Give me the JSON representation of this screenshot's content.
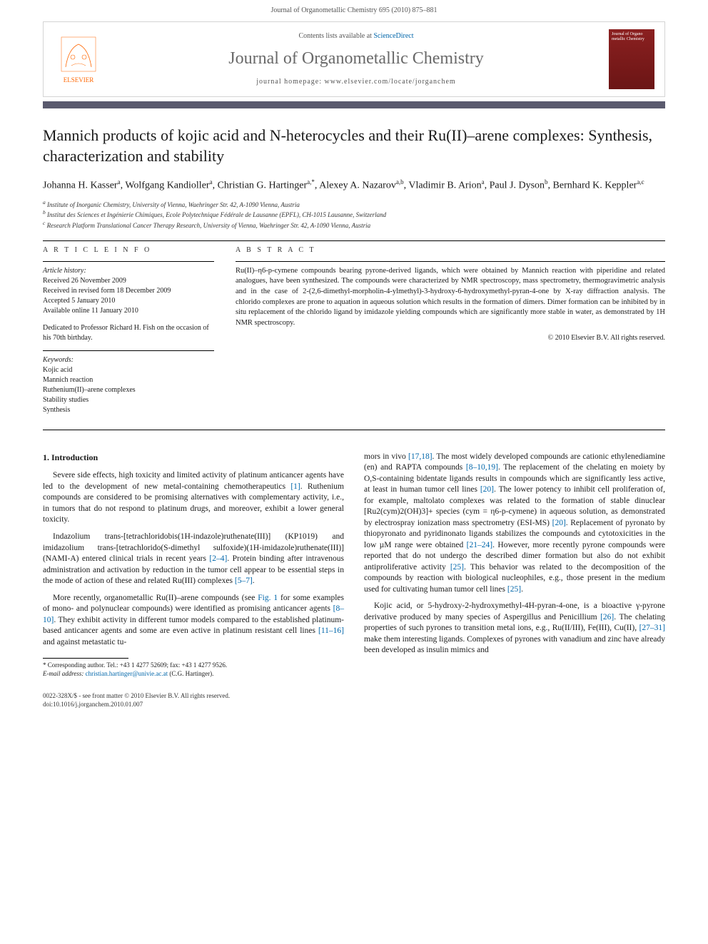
{
  "page_header": "Journal of Organometallic Chemistry 695 (2010) 875–881",
  "banner": {
    "contents_prefix": "Contents lists available at ",
    "contents_link": "ScienceDirect",
    "journal_name": "Journal of Organometallic Chemistry",
    "homepage_prefix": "journal homepage: ",
    "homepage_url": "www.elsevier.com/locate/jorganchem",
    "publisher_logo_text": "ELSEVIER",
    "cover_text": "Journal of Organo metallic Chemistry"
  },
  "color_bar": "#5a5a6e",
  "title": "Mannich products of kojic acid and N-heterocycles and their Ru(II)–arene complexes: Synthesis, characterization and stability",
  "authors_html": "Johanna H. Kasser<sup>a</sup>, Wolfgang Kandioller<sup>a</sup>, Christian G. Hartinger<sup>a,*</sup>, Alexey A. Nazarov<sup>a,b</sup>, Vladimir B. Arion<sup>a</sup>, Paul J. Dyson<sup>b</sup>, Bernhard K. Keppler<sup>a,c</sup>",
  "affiliations": [
    "a Institute of Inorganic Chemistry, University of Vienna, Waehringer Str. 42, A-1090 Vienna, Austria",
    "b Institut des Sciences et Ingénierie Chimiques, Ecole Polytechnique Fédérale de Lausanne (EPFL), CH-1015 Lausanne, Switzerland",
    "c Research Platform Translational Cancer Therapy Research, University of Vienna, Waehringer Str. 42, A-1090 Vienna, Austria"
  ],
  "info": {
    "heading": "A R T I C L E   I N F O",
    "history_label": "Article history:",
    "history": [
      "Received 26 November 2009",
      "Received in revised form 18 December 2009",
      "Accepted 5 January 2010",
      "Available online 11 January 2010"
    ],
    "dedication": "Dedicated to Professor Richard H. Fish on the occasion of his 70th birthday.",
    "keywords_label": "Keywords:",
    "keywords": [
      "Kojic acid",
      "Mannich reaction",
      "Ruthenium(II)–arene complexes",
      "Stability studies",
      "Synthesis"
    ]
  },
  "abstract": {
    "heading": "A B S T R A C T",
    "text": "Ru(II)–η6-p-cymene compounds bearing pyrone-derived ligands, which were obtained by Mannich reaction with piperidine and related analogues, have been synthesized. The compounds were characterized by NMR spectroscopy, mass spectrometry, thermogravimetric analysis and in the case of 2-(2,6-dimethyl-morpholin-4-ylmethyl)-3-hydroxy-6-hydroxymethyl-pyran-4-one by X-ray diffraction analysis. The chlorido complexes are prone to aquation in aqueous solution which results in the formation of dimers. Dimer formation can be inhibited by in situ replacement of the chlorido ligand by imidazole yielding compounds which are significantly more stable in water, as demonstrated by 1H NMR spectroscopy.",
    "copyright": "© 2010 Elsevier B.V. All rights reserved."
  },
  "section_heading": "1. Introduction",
  "paras_left": [
    "Severe side effects, high toxicity and limited activity of platinum anticancer agents have led to the development of new metal-containing chemotherapeutics [1]. Ruthenium compounds are considered to be promising alternatives with complementary activity, i.e., in tumors that do not respond to platinum drugs, and moreover, exhibit a lower general toxicity.",
    "Indazolium trans-[tetrachloridobis(1H-indazole)ruthenate(III)] (KP1019) and imidazolium trans-[tetrachlorido(S-dimethyl sulfoxide)(1H-imidazole)ruthenate(III)] (NAMI-A) entered clinical trials in recent years [2–4]. Protein binding after intravenous administration and activation by reduction in the tumor cell appear to be essential steps in the mode of action of these and related Ru(III) complexes [5–7].",
    "More recently, organometallic Ru(II)–arene compounds (see Fig. 1 for some examples of mono- and polynuclear compounds) were identified as promising anticancer agents [8–10]. They exhibit activity in different tumor models compared to the established platinum-based anticancer agents and some are even active in platinum resistant cell lines [11–16] and against metastatic tu-"
  ],
  "paras_right": [
    "mors in vivo [17,18]. The most widely developed compounds are cationic ethylenediamine (en) and RAPTA compounds [8–10,19]. The replacement of the chelating en moiety by O,S-containing bidentate ligands results in compounds which are significantly less active, at least in human tumor cell lines [20]. The lower potency to inhibit cell proliferation of, for example, maltolato complexes was related to the formation of stable dinuclear [Ru2(cym)2(OH)3]+ species (cym = η6-p-cymene) in aqueous solution, as demonstrated by electrospray ionization mass spectrometry (ESI-MS) [20]. Replacement of pyronato by thiopyronato and pyridinonato ligands stabilizes the compounds and cytotoxicities in the low µM range were obtained [21–24]. However, more recently pyrone compounds were reported that do not undergo the described dimer formation but also do not exhibit antiproliferative activity [25]. This behavior was related to the decomposition of the compounds by reaction with biological nucleophiles, e.g., those present in the medium used for cultivating human tumor cell lines [25].",
    "Kojic acid, or 5-hydroxy-2-hydroxymethyl-4H-pyran-4-one, is a bioactive γ-pyrone derivative produced by many species of Aspergillus and Penicillium [26]. The chelating properties of such pyrones to transition metal ions, e.g., Ru(II/III), Fe(III), Cu(II), [27–31] make them interesting ligands. Complexes of pyrones with vanadium and zinc have already been developed as insulin mimics and"
  ],
  "footnote": {
    "corr": "* Corresponding author. Tel.: +43 1 4277 52609; fax: +43 1 4277 9526.",
    "email_label": "E-mail address:",
    "email": "christian.hartinger@univie.ac.at",
    "email_person": "(C.G. Hartinger)."
  },
  "footer": {
    "line1": "0022-328X/$ - see front matter © 2010 Elsevier B.V. All rights reserved.",
    "line2": "doi:10.1016/j.jorganchem.2010.01.007"
  }
}
